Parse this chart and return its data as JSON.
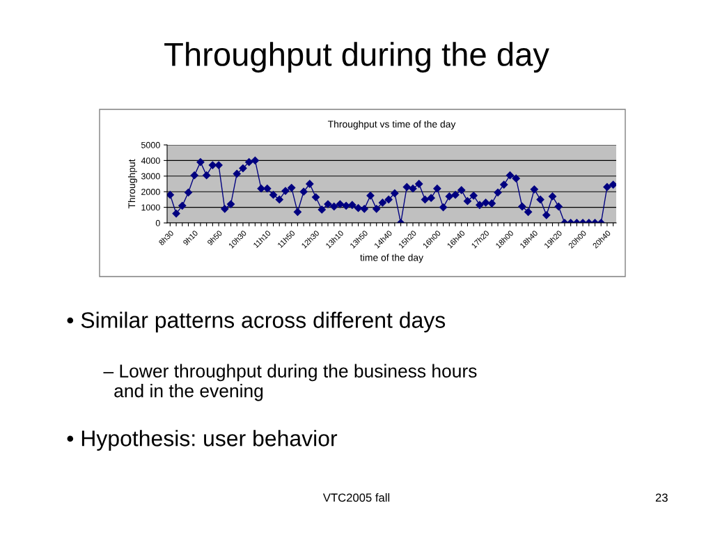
{
  "chart_data": {
    "type": "line",
    "title": "Throughput vs time of the day",
    "xlabel": "time of the day",
    "ylabel": "Throughput",
    "categories": [
      "8h30",
      null,
      null,
      null,
      "9h10",
      null,
      null,
      null,
      "9h50",
      null,
      null,
      null,
      "10h30",
      null,
      null,
      null,
      "11h10",
      null,
      null,
      null,
      "11h50",
      null,
      null,
      null,
      "12h30",
      null,
      null,
      null,
      "13h10",
      null,
      null,
      null,
      "13h50",
      null,
      null,
      null,
      "14h40",
      null,
      null,
      null,
      "15h20",
      null,
      null,
      null,
      "16h00",
      null,
      null,
      null,
      "16h40",
      null,
      null,
      null,
      "17h20",
      null,
      null,
      null,
      "18h00",
      null,
      null,
      null,
      "18h40",
      null,
      null,
      null,
      "19h20",
      null,
      null,
      null,
      "20h00",
      null,
      null,
      null,
      "20h40",
      null
    ],
    "series": [
      {
        "color": "#000080",
        "values": [
          1800,
          600,
          1100,
          1950,
          3050,
          3900,
          3050,
          3700,
          3700,
          900,
          1200,
          3150,
          3500,
          3900,
          4000,
          2200,
          2200,
          1800,
          1500,
          2050,
          2250,
          700,
          2000,
          2500,
          1650,
          850,
          1200,
          1050,
          1200,
          1100,
          1150,
          950,
          900,
          1750,
          900,
          1300,
          1500,
          1900,
          0,
          2300,
          2200,
          2500,
          1500,
          1600,
          2200,
          1000,
          1700,
          1800,
          2100,
          1400,
          1750,
          1150,
          1300,
          1250,
          1950,
          2450,
          3050,
          2850,
          1050,
          700,
          2150,
          1500,
          500,
          1700,
          1050,
          0,
          0,
          0,
          0,
          0,
          0,
          0,
          2300,
          2450
        ]
      }
    ],
    "ylim": [
      0,
      5000
    ],
    "yticks": [
      0,
      1000,
      2000,
      3000,
      4000,
      5000
    ],
    "grid": "y",
    "legend": false,
    "marker": "diamond",
    "line_style": "solid",
    "annotations": [
      "Throughput during the day",
      "• Similar patterns across different days",
      "– Lower throughput during the business hours\n  and in the evening",
      "• Hypothesis: user behavior",
      "VTC2005 fall",
      "23"
    ]
  }
}
